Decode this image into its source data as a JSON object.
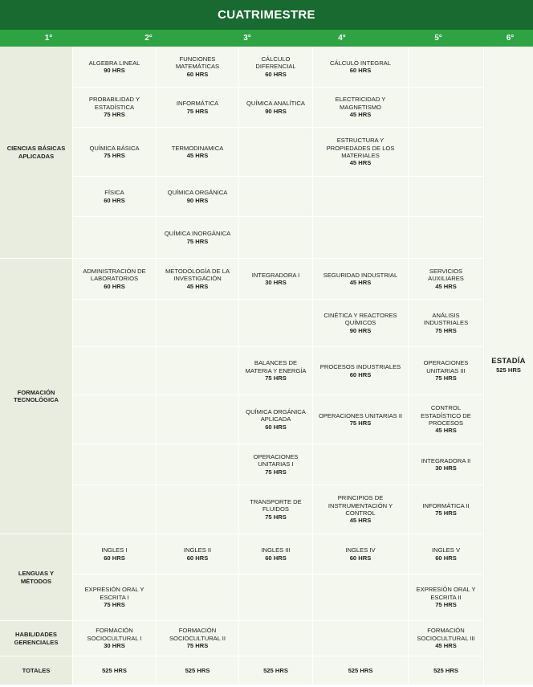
{
  "title": "CUATRIMESTRE",
  "columns": [
    "1°",
    "2°",
    "3°",
    "4°",
    "5°",
    "6°"
  ],
  "categories": {
    "cba": "CIENCIAS BÁSICAS APLICADAS",
    "ft": "FORMACIÓN TECNOLÓGICA",
    "lm": "LENGUAS Y MÉTODOS",
    "hg": "HABILIDADES GERENCIALES",
    "totales": "TOTALES"
  },
  "courses": {
    "c2_r1": {
      "name": "ALGEBRA LINEAL",
      "hrs": "90 HRS"
    },
    "c3_r1": {
      "name": "FUNCIONES MATEMÁTICAS",
      "hrs": "60 HRS"
    },
    "c4_r1": {
      "name": "CÁLCULO DIFERENCIAL",
      "hrs": "60 HRS"
    },
    "c5_r1": {
      "name": "CÁLCULO INTEGRAL",
      "hrs": "60 HRS"
    },
    "c2_r2": {
      "name": "PROBABILIDAD Y ESTADÍSTICA",
      "hrs": "75 HRS"
    },
    "c3_r2": {
      "name": "INFORMÁTICA",
      "hrs": "75 HRS"
    },
    "c4_r2": {
      "name": "QUÍMICA ANALÍTICA",
      "hrs": "90 HRS"
    },
    "c5_r2": {
      "name": "ELECTRICIDAD Y MAGNETISMO",
      "hrs": "45 HRS"
    },
    "c2_r3": {
      "name": "QUÍMICA BÁSICA",
      "hrs": "75 HRS"
    },
    "c3_r3": {
      "name": "TERMODINAMICA",
      "hrs": "45 HRS"
    },
    "c5_r3": {
      "name": "ESTRUCTURA Y PROPIEDADES DE LOS MATERIALES",
      "hrs": "45 HRS"
    },
    "c2_r4": {
      "name": "FÍSICA",
      "hrs": "60 HRS"
    },
    "c3_r4": {
      "name": "QUÍMICA ORGÁNICA",
      "hrs": "90 HRS"
    },
    "c3_r5": {
      "name": "QUÍMICA INORGÁNICA",
      "hrs": "75 HRS"
    },
    "c2_r6": {
      "name": "ADMINISTRACIÓN DE LABORATORIOS",
      "hrs": "60 HRS"
    },
    "c3_r6": {
      "name": "METODOLOGÍA DE LA INVESTIGACIÓN",
      "hrs": "45 HRS"
    },
    "c4_r6": {
      "name": "INTEGRADORA I",
      "hrs": "30 HRS"
    },
    "c5_r6": {
      "name": "SEGURIDAD INDUSTRIAL",
      "hrs": "45 HRS"
    },
    "c6_r6": {
      "name": "SERVICIOS AUXILIARES",
      "hrs": "45 HRS"
    },
    "c5_r7": {
      "name": "CINÉTICA Y REACTORES QUÍMICOS",
      "hrs": "90 HRS"
    },
    "c6_r7": {
      "name": "ANÁLISIS INDUSTRIALES",
      "hrs": "75 HRS"
    },
    "c4_r8": {
      "name": "BALANCES DE MATERIA Y ENERGÍA",
      "hrs": "75 HRS"
    },
    "c5_r8": {
      "name": "PROCESOS INDUSTRIALES",
      "hrs": "60 HRS"
    },
    "c6_r8": {
      "name": "OPERACIONES UNITARIAS III",
      "hrs": "75 HRS"
    },
    "c4_r9": {
      "name": "QUÍMICA ORGÁNICA APLICADA",
      "hrs": "60 HRS"
    },
    "c5_r9": {
      "name": "OPERACIONES UNITARIAS II",
      "hrs": "75 HRS"
    },
    "c6_r9": {
      "name": "CONTROL ESTADÍSTICO DE PROCESOS",
      "hrs": "45 HRS"
    },
    "c4_r10": {
      "name": "OPERACIONES UNITARIAS I",
      "hrs": "75 HRS"
    },
    "c6_r10": {
      "name": "INTEGRADORA II",
      "hrs": "30 HRS"
    },
    "c4_r11": {
      "name": "TRANSPORTE DE FLUIDOS",
      "hrs": "75 HRS"
    },
    "c5_r11": {
      "name": "PRINCIPIOS DE INSTRUMENTACIÓN Y CONTROL",
      "hrs": "45 HRS"
    },
    "c6_r11": {
      "name": "INFORMÁTICA II",
      "hrs": "75 HRS"
    },
    "c2_r12": {
      "name": "INGLES I",
      "hrs": "60 HRS"
    },
    "c3_r12": {
      "name": "INGLES II",
      "hrs": "60 HRS"
    },
    "c4_r12": {
      "name": "INGLES III",
      "hrs": "60 HRS"
    },
    "c5_r12": {
      "name": "INGLES IV",
      "hrs": "60 HRS"
    },
    "c6_r12": {
      "name": "INGLES V",
      "hrs": "60 HRS"
    },
    "c2_r13": {
      "name": "EXPRESIÓN ORAL Y ESCRITA I",
      "hrs": "75 HRS"
    },
    "c6_r13": {
      "name": "EXPRESIÓN ORAL Y ESCRITA II",
      "hrs": "75 HRS"
    },
    "c2_r14": {
      "name": "FORMACIÓN SOCIOCULTURAL I",
      "hrs": "30 HRS"
    },
    "c3_r14": {
      "name": "FORMACIÓN SOCIOCULTURAL II",
      "hrs": "75 HRS"
    },
    "c6_r14": {
      "name": "FORMACIÓN SOCIOCULTURAL III",
      "hrs": "45 HRS"
    }
  },
  "estadia": {
    "name": "ESTADÍA",
    "hrs": "525 HRS"
  },
  "totales": [
    "525 HRS",
    "525 HRS",
    "525 HRS",
    "525 HRS",
    "525 HRS"
  ]
}
